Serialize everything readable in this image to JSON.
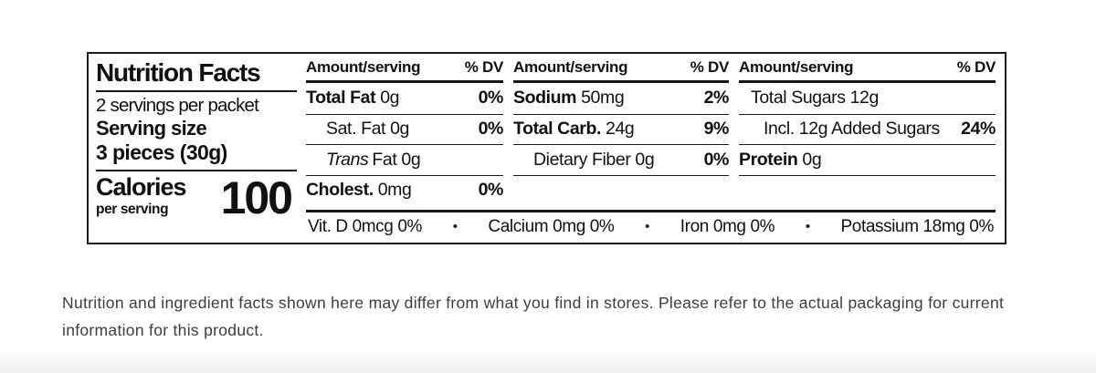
{
  "label": {
    "title": "Nutrition Facts",
    "servings_per_packet": "2 servings per packet",
    "serving_size_label": "Serving size",
    "serving_size_value": "3 pieces (30g)",
    "calories_label": "Calories",
    "calories_sublabel": "per serving",
    "calories_value": "100",
    "columns": [
      {
        "header": {
          "amount": "Amount/serving",
          "dv": "% DV"
        },
        "rows": [
          {
            "name": "Total Fat",
            "amount": "0g",
            "dv": "0%"
          },
          {
            "name": "Sat. Fat",
            "amount": "0g",
            "dv": "0%"
          },
          {
            "name_italic": "Trans",
            "name": "Fat",
            "amount": "0g",
            "dv": ""
          },
          {
            "name": "Cholest.",
            "amount": "0mg",
            "dv": "0%"
          }
        ]
      },
      {
        "header": {
          "amount": "Amount/serving",
          "dv": "% DV"
        },
        "rows": [
          {
            "name": "Sodium",
            "amount": "50mg",
            "dv": "2%"
          },
          {
            "name": "Total Carb.",
            "amount": "24g",
            "dv": "9%"
          },
          {
            "name": "Dietary Fiber",
            "amount": "0g",
            "dv": "0%"
          },
          {
            "name": "",
            "amount": "",
            "dv": ""
          }
        ]
      },
      {
        "header": {
          "amount": "Amount/serving",
          "dv": "% DV"
        },
        "rows": [
          {
            "name": "Total Sugars",
            "amount": "12g",
            "dv": ""
          },
          {
            "name": "Incl. 12g Added Sugars",
            "amount": "",
            "dv": "24%"
          },
          {
            "name": "Protein",
            "amount": "0g",
            "dv": ""
          },
          {
            "name": "",
            "amount": "",
            "dv": ""
          }
        ]
      }
    ],
    "micronutrients": [
      "Vit. D 0mcg 0%",
      "Calcium 0mg 0%",
      "Iron 0mg 0%",
      "Potassium 18mg 0%"
    ],
    "bullet": "•"
  },
  "disclaimer": "Nutrition and ingredient facts shown here may differ from what you find in stores. Please refer to the actual packaging for current information for this product."
}
